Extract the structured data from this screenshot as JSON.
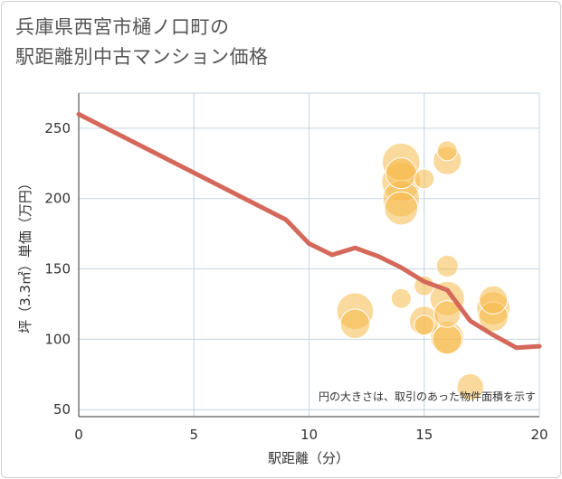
{
  "title_lines": [
    "兵庫県西宮市樋ノ口町の",
    "駅距離別中古マンション価格"
  ],
  "chart_data": {
    "type": "scatter",
    "title": "兵庫県西宮市樋ノ口町の駅距離別中古マンション価格",
    "xlabel": "駅距離（分）",
    "ylabel": "坪（3.3㎡）単価（万円）",
    "xlim": [
      0,
      20
    ],
    "ylim": [
      45,
      275
    ],
    "xticks": [
      0,
      5,
      10,
      15,
      20
    ],
    "yticks": [
      50,
      100,
      150,
      200,
      250
    ],
    "grid": true,
    "annotation": "円の大きさは、取引のあった物件面積を示す",
    "colors": {
      "bubble": "#f5b94a",
      "trend": "#d4685a",
      "grid": "#c5d3df"
    },
    "points": [
      {
        "x": 12,
        "y": 120,
        "size": 85
      },
      {
        "x": 12,
        "y": 111,
        "size": 55
      },
      {
        "x": 14,
        "y": 226,
        "size": 90
      },
      {
        "x": 14,
        "y": 212,
        "size": 95
      },
      {
        "x": 14,
        "y": 200,
        "size": 85
      },
      {
        "x": 14,
        "y": 193,
        "size": 70
      },
      {
        "x": 14,
        "y": 218,
        "size": 60
      },
      {
        "x": 14,
        "y": 129,
        "size": 25
      },
      {
        "x": 15,
        "y": 214,
        "size": 25
      },
      {
        "x": 15,
        "y": 138,
        "size": 25
      },
      {
        "x": 15,
        "y": 113,
        "size": 55
      },
      {
        "x": 15,
        "y": 110,
        "size": 25
      },
      {
        "x": 16,
        "y": 234,
        "size": 25
      },
      {
        "x": 16,
        "y": 227,
        "size": 50
      },
      {
        "x": 16,
        "y": 152,
        "size": 30
      },
      {
        "x": 16,
        "y": 129,
        "size": 75
      },
      {
        "x": 16,
        "y": 118,
        "size": 45
      },
      {
        "x": 16,
        "y": 101,
        "size": 70
      },
      {
        "x": 16,
        "y": 100,
        "size": 55
      },
      {
        "x": 17,
        "y": 66,
        "size": 45
      },
      {
        "x": 18,
        "y": 128,
        "size": 50
      },
      {
        "x": 18,
        "y": 122,
        "size": 70
      },
      {
        "x": 18,
        "y": 116,
        "size": 55
      }
    ],
    "trend_line": {
      "x": [
        0,
        9,
        10,
        11,
        12,
        13,
        14,
        15,
        16,
        17,
        18,
        19,
        20
      ],
      "y": [
        260,
        185,
        168,
        160,
        165,
        159,
        151,
        141,
        135,
        113,
        103,
        94,
        95
      ]
    }
  }
}
